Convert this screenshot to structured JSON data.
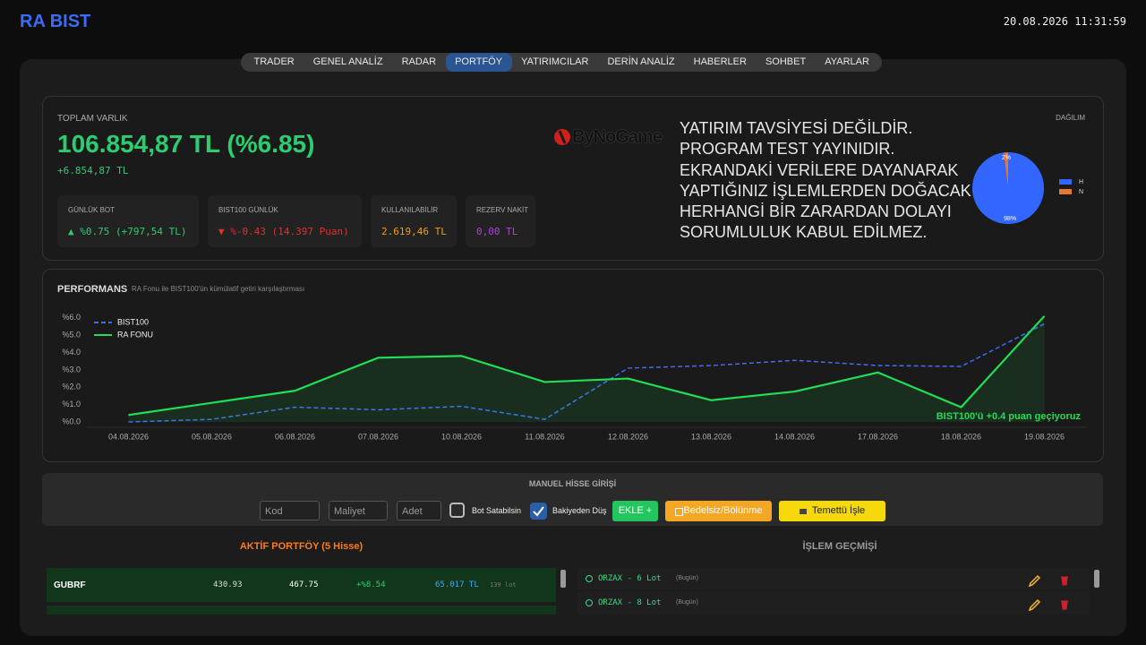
{
  "header": {
    "title": "RA BIST",
    "datetime": "20.08.2026 11:31:59"
  },
  "nav": [
    "TRADER",
    "GENEL ANALİZ",
    "RADAR",
    "PORTFÖY",
    "YATIRIMCILAR",
    "DERİN ANALİZ",
    "HABERLER",
    "SOHBET",
    "AYARLAR"
  ],
  "summary": {
    "label": "TOPLAM VARLIK",
    "total": "106.854,87 TL (%6.85)",
    "change": "+6.854,87 TL",
    "cards": [
      {
        "label": "GÜNLÜK BOT",
        "value": "▲ %0.75 (+797,54 TL)"
      },
      {
        "label": "BIST100 GÜNLÜK",
        "value": "▼ %-0.43 (14.397 Puan)"
      },
      {
        "label": "KULLANILABİLİR",
        "value": "2.619,46 TL"
      },
      {
        "label": "REZERV NAKİT",
        "value": "0,00 TL"
      }
    ],
    "logo": "ByNoGame",
    "disclaimer": [
      "YATIRIM TAVSİYESİ DEĞİLDİR.",
      "PROGRAM TEST YAYINIDIR.",
      "EKRANDAKİ VERİLERE DAYANARAK",
      "YAPTIĞINIZ İŞLEMLERDEN DOĞACAK",
      "HERHANGİ BİR ZARARDAN DOLAYI",
      "SORUMLULUK KABUL EDİLMEZ."
    ]
  },
  "chart_data": [
    {
      "type": "line",
      "title": "PERFORMANS",
      "subtitle": "RA Fonu ile BIST100'ün kümülatif getiri karşılaştırması",
      "categories": [
        "04.08.2026",
        "05.08.2026",
        "06.08.2026",
        "07.08.2026",
        "10.08.2026",
        "11.08.2026",
        "12.08.2026",
        "13.08.2026",
        "14.08.2026",
        "17.08.2026",
        "18.08.2026",
        "19.08.2026"
      ],
      "series": [
        {
          "name": "BIST100",
          "color": "#3b6cf6",
          "style": "dashed",
          "values": [
            0.0,
            0.15,
            0.85,
            0.7,
            0.9,
            0.15,
            3.1,
            3.25,
            3.55,
            3.25,
            3.2,
            5.65
          ]
        },
        {
          "name": "RA FONU",
          "color": "#22dd55",
          "style": "solid",
          "fill": true,
          "values": [
            0.4,
            1.1,
            1.8,
            3.7,
            3.8,
            2.3,
            2.5,
            1.25,
            1.75,
            2.85,
            0.85,
            6.1
          ]
        }
      ],
      "ylim": [
        0,
        6.4
      ],
      "yticks": [
        {
          "value": 0,
          "label": "%0.0"
        },
        {
          "value": 1,
          "label": "%1.0"
        },
        {
          "value": 2,
          "label": "%2.0"
        },
        {
          "value": 3,
          "label": "%3.0"
        },
        {
          "value": 4,
          "label": "%4.0"
        },
        {
          "value": 5,
          "label": "%5.0"
        },
        {
          "value": 6,
          "label": "%6.0"
        }
      ],
      "grid": false,
      "legend": "top-left",
      "annotation": "BIST100'ü +0.4 puan geçiyoruz"
    },
    {
      "type": "pie",
      "title": "DAĞILIM",
      "categories": [
        "H",
        "N"
      ],
      "values": [
        98,
        2
      ],
      "value_labels": [
        "98%",
        "2%"
      ],
      "colors": [
        "#3366ff",
        "#e8772e"
      ]
    }
  ],
  "manual": {
    "title": "MANUEL HİSSE GİRİŞİ",
    "inputs": [
      "Kod",
      "Maliyet",
      "Adet"
    ],
    "checkboxes": [
      "Bot Satabilsin",
      "Bakiyeden Düş"
    ],
    "buttons": [
      "EKLE +",
      "Bedelsiz/Bölünme",
      "Temettü İşle"
    ]
  },
  "portfolio": {
    "title": "AKTİF PORTFÖY (5 Hisse)",
    "rows": [
      [
        "GUBRF",
        "430.93",
        "467.75",
        "+%8.54",
        "65.017 TL",
        "139 lot"
      ]
    ]
  },
  "history": {
    "title": "İŞLEM GEÇMİŞİ",
    "items": [
      {
        "text": "ORZAX - 6 Lot",
        "when": "(Bugün)"
      },
      {
        "text": "ORZAX - 8 Lot",
        "when": "(Bugün)"
      }
    ]
  }
}
